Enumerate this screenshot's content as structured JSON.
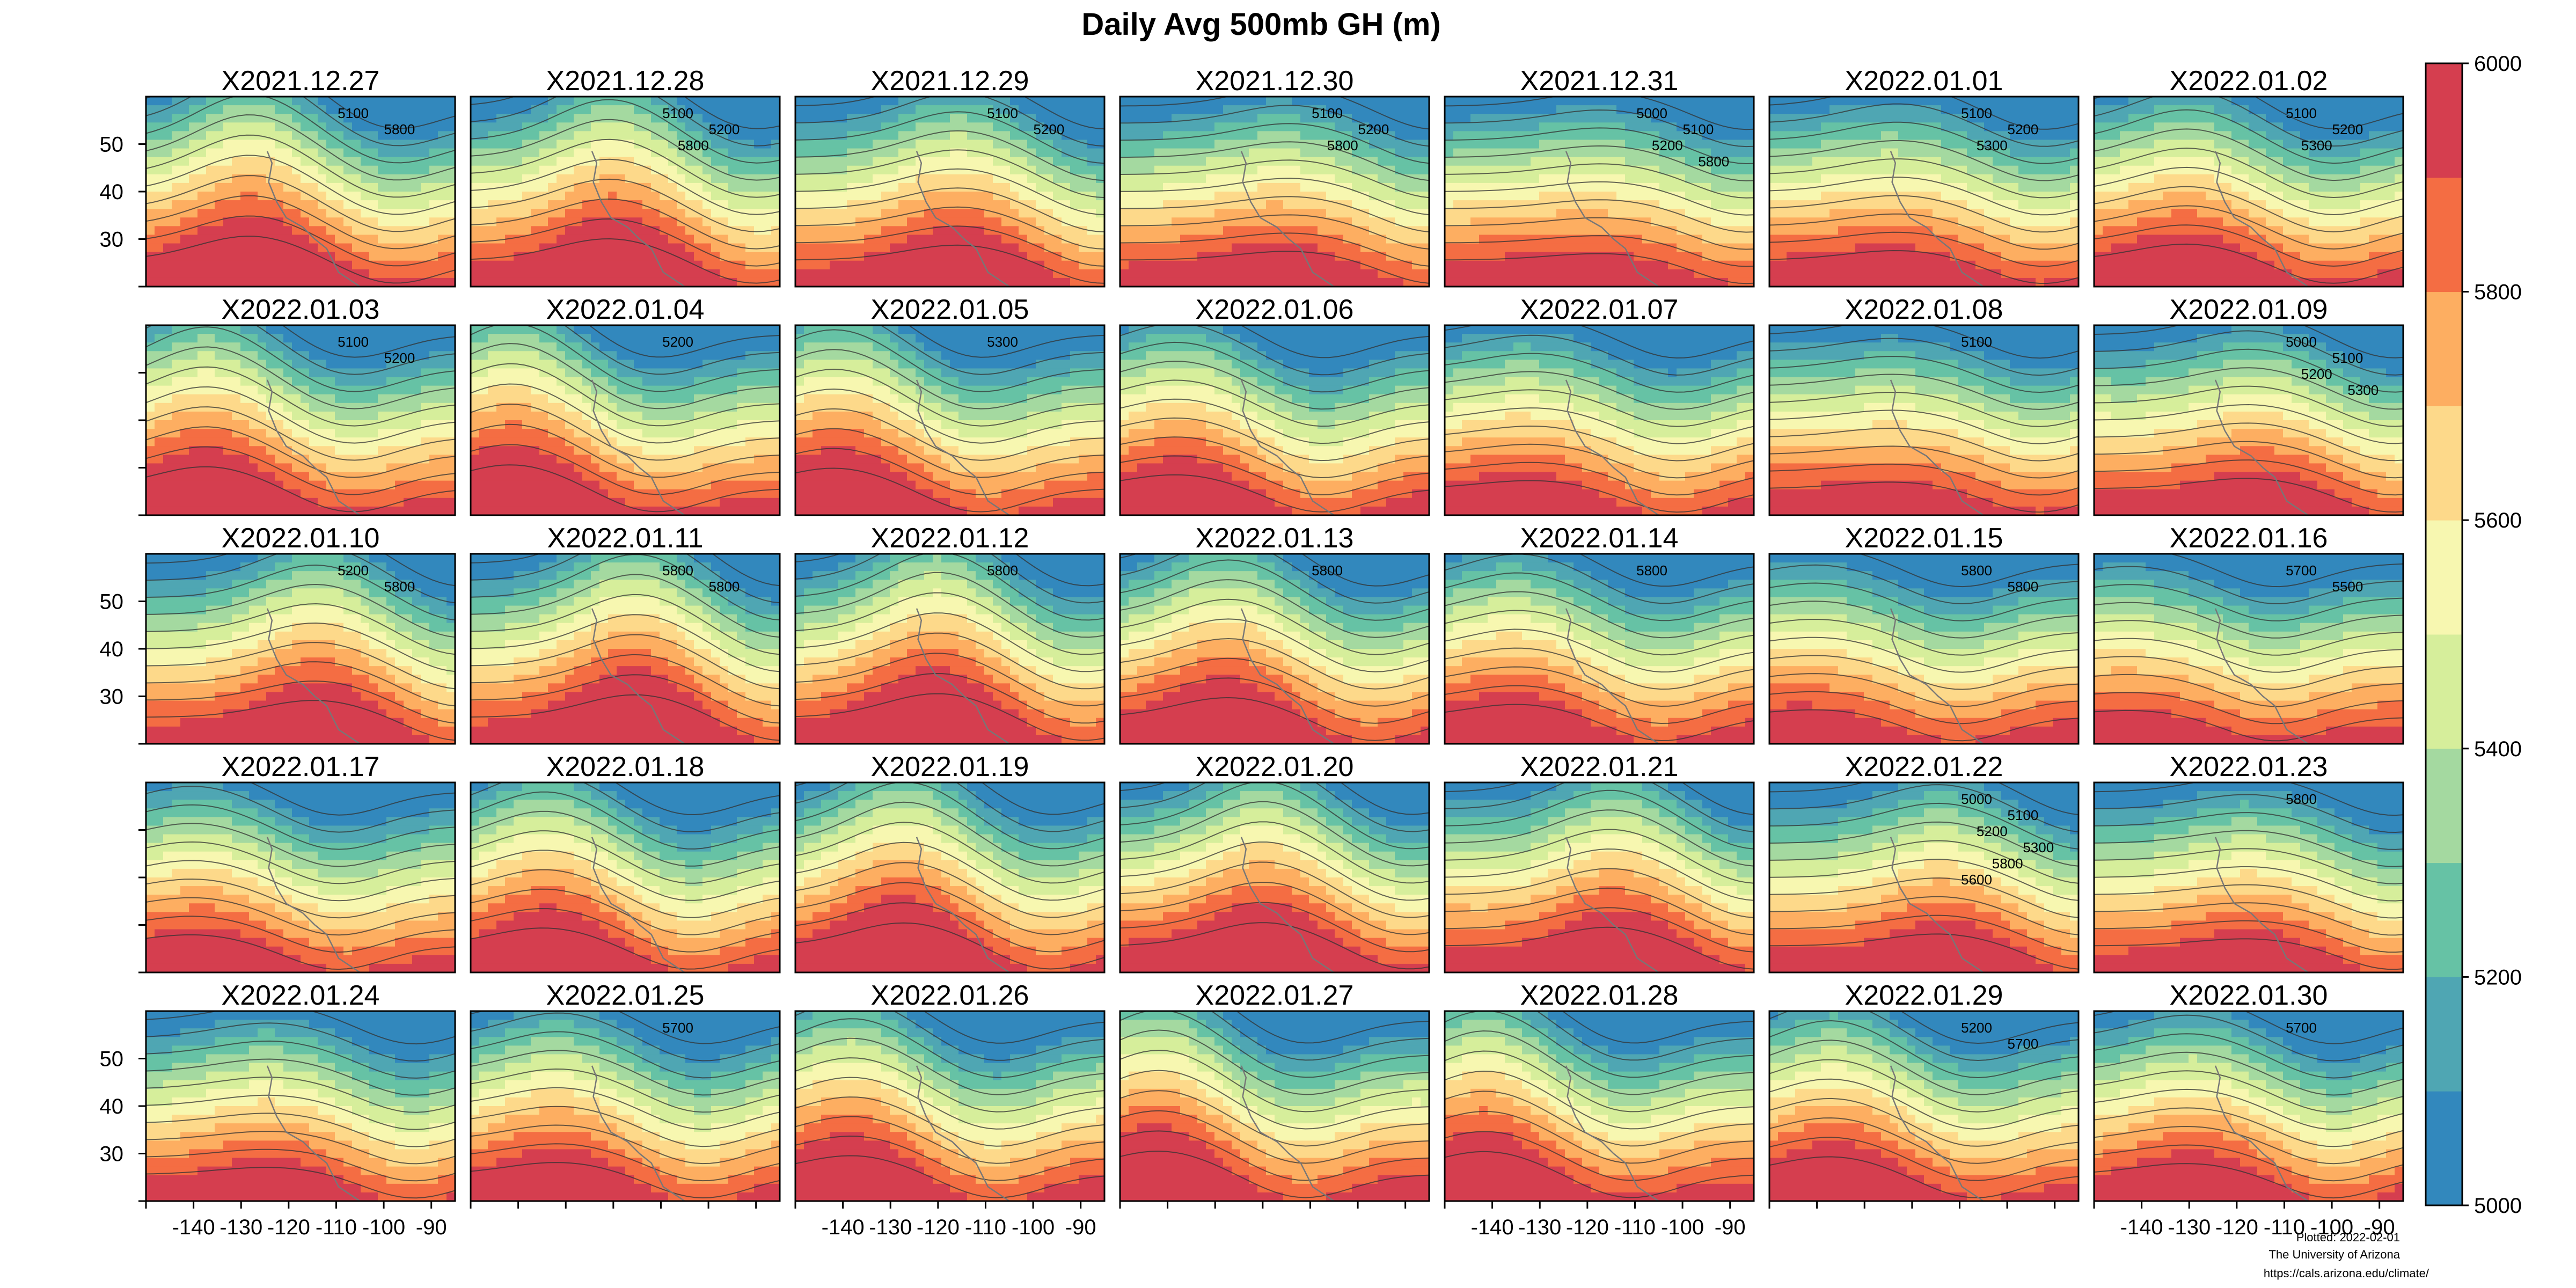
{
  "chart_data": {
    "type": "heatmap",
    "title": "Daily Avg 500mb GH (m)",
    "variable": "500mb geopotential height",
    "units": "m",
    "layout": {
      "rows": 5,
      "cols": 7
    },
    "x_axis": {
      "range": [
        -150,
        -85
      ],
      "ticks": [
        -140,
        -130,
        -120,
        -110,
        -100,
        -90
      ]
    },
    "y_axis": {
      "range": [
        20,
        60
      ],
      "ticks": [
        30,
        40,
        50
      ]
    },
    "colorbar": {
      "range": [
        5000,
        6000
      ],
      "step": 100,
      "tick_labels": [
        5000,
        5200,
        5400,
        5600,
        5800,
        6000
      ],
      "colors": [
        "#3288bd",
        "#4fa6b3",
        "#66c2a5",
        "#a4d9a0",
        "#d6ee9b",
        "#f7f7b0",
        "#fdd98a",
        "#fdae61",
        "#f46d43",
        "#d53e4f"
      ]
    },
    "contour_interval": 100,
    "panels": [
      {
        "date": "X2021.12.27",
        "labels": [
          "5100",
          "5800"
        ]
      },
      {
        "date": "X2021.12.28",
        "labels": [
          "5100",
          "5200",
          "5800"
        ]
      },
      {
        "date": "X2021.12.29",
        "labels": [
          "5100",
          "5200"
        ]
      },
      {
        "date": "X2021.12.30",
        "labels": [
          "5100",
          "5200",
          "5800"
        ]
      },
      {
        "date": "X2021.12.31",
        "labels": [
          "5000",
          "5100",
          "5200",
          "5800"
        ]
      },
      {
        "date": "X2022.01.01",
        "labels": [
          "5100",
          "5200",
          "5300"
        ]
      },
      {
        "date": "X2022.01.02",
        "labels": [
          "5100",
          "5200",
          "5300"
        ]
      },
      {
        "date": "X2022.01.03",
        "labels": [
          "5100",
          "5200"
        ]
      },
      {
        "date": "X2022.01.04",
        "labels": [
          "5200"
        ]
      },
      {
        "date": "X2022.01.05",
        "labels": [
          "5300"
        ]
      },
      {
        "date": "X2022.01.06",
        "labels": []
      },
      {
        "date": "X2022.01.07",
        "labels": []
      },
      {
        "date": "X2022.01.08",
        "labels": [
          "5100"
        ]
      },
      {
        "date": "X2022.01.09",
        "labels": [
          "5000",
          "5100",
          "5200",
          "5300"
        ]
      },
      {
        "date": "X2022.01.10",
        "labels": [
          "5200",
          "5800"
        ]
      },
      {
        "date": "X2022.01.11",
        "labels": [
          "5800",
          "5800"
        ]
      },
      {
        "date": "X2022.01.12",
        "labels": [
          "5800"
        ]
      },
      {
        "date": "X2022.01.13",
        "labels": [
          "5800"
        ]
      },
      {
        "date": "X2022.01.14",
        "labels": [
          "5800"
        ]
      },
      {
        "date": "X2022.01.15",
        "labels": [
          "5800",
          "5800"
        ]
      },
      {
        "date": "X2022.01.16",
        "labels": [
          "5700",
          "5500"
        ]
      },
      {
        "date": "X2022.01.17",
        "labels": []
      },
      {
        "date": "X2022.01.18",
        "labels": []
      },
      {
        "date": "X2022.01.19",
        "labels": []
      },
      {
        "date": "X2022.01.20",
        "labels": []
      },
      {
        "date": "X2022.01.21",
        "labels": []
      },
      {
        "date": "X2022.01.22",
        "labels": [
          "5000",
          "5100",
          "5200",
          "5300",
          "5800",
          "5600"
        ]
      },
      {
        "date": "X2022.01.23",
        "labels": [
          "5800"
        ]
      },
      {
        "date": "X2022.01.24",
        "labels": []
      },
      {
        "date": "X2022.01.25",
        "labels": [
          "5700"
        ]
      },
      {
        "date": "X2022.01.26",
        "labels": []
      },
      {
        "date": "X2022.01.27",
        "labels": []
      },
      {
        "date": "X2022.01.28",
        "labels": []
      },
      {
        "date": "X2022.01.29",
        "labels": [
          "5200",
          "5700"
        ]
      },
      {
        "date": "X2022.01.30",
        "labels": [
          "5700"
        ]
      }
    ],
    "footer": {
      "plotted": "Plotted: 2022-02-01",
      "institution": "The University of Arizona",
      "url": "https://cals.arizona.edu/climate/"
    }
  }
}
